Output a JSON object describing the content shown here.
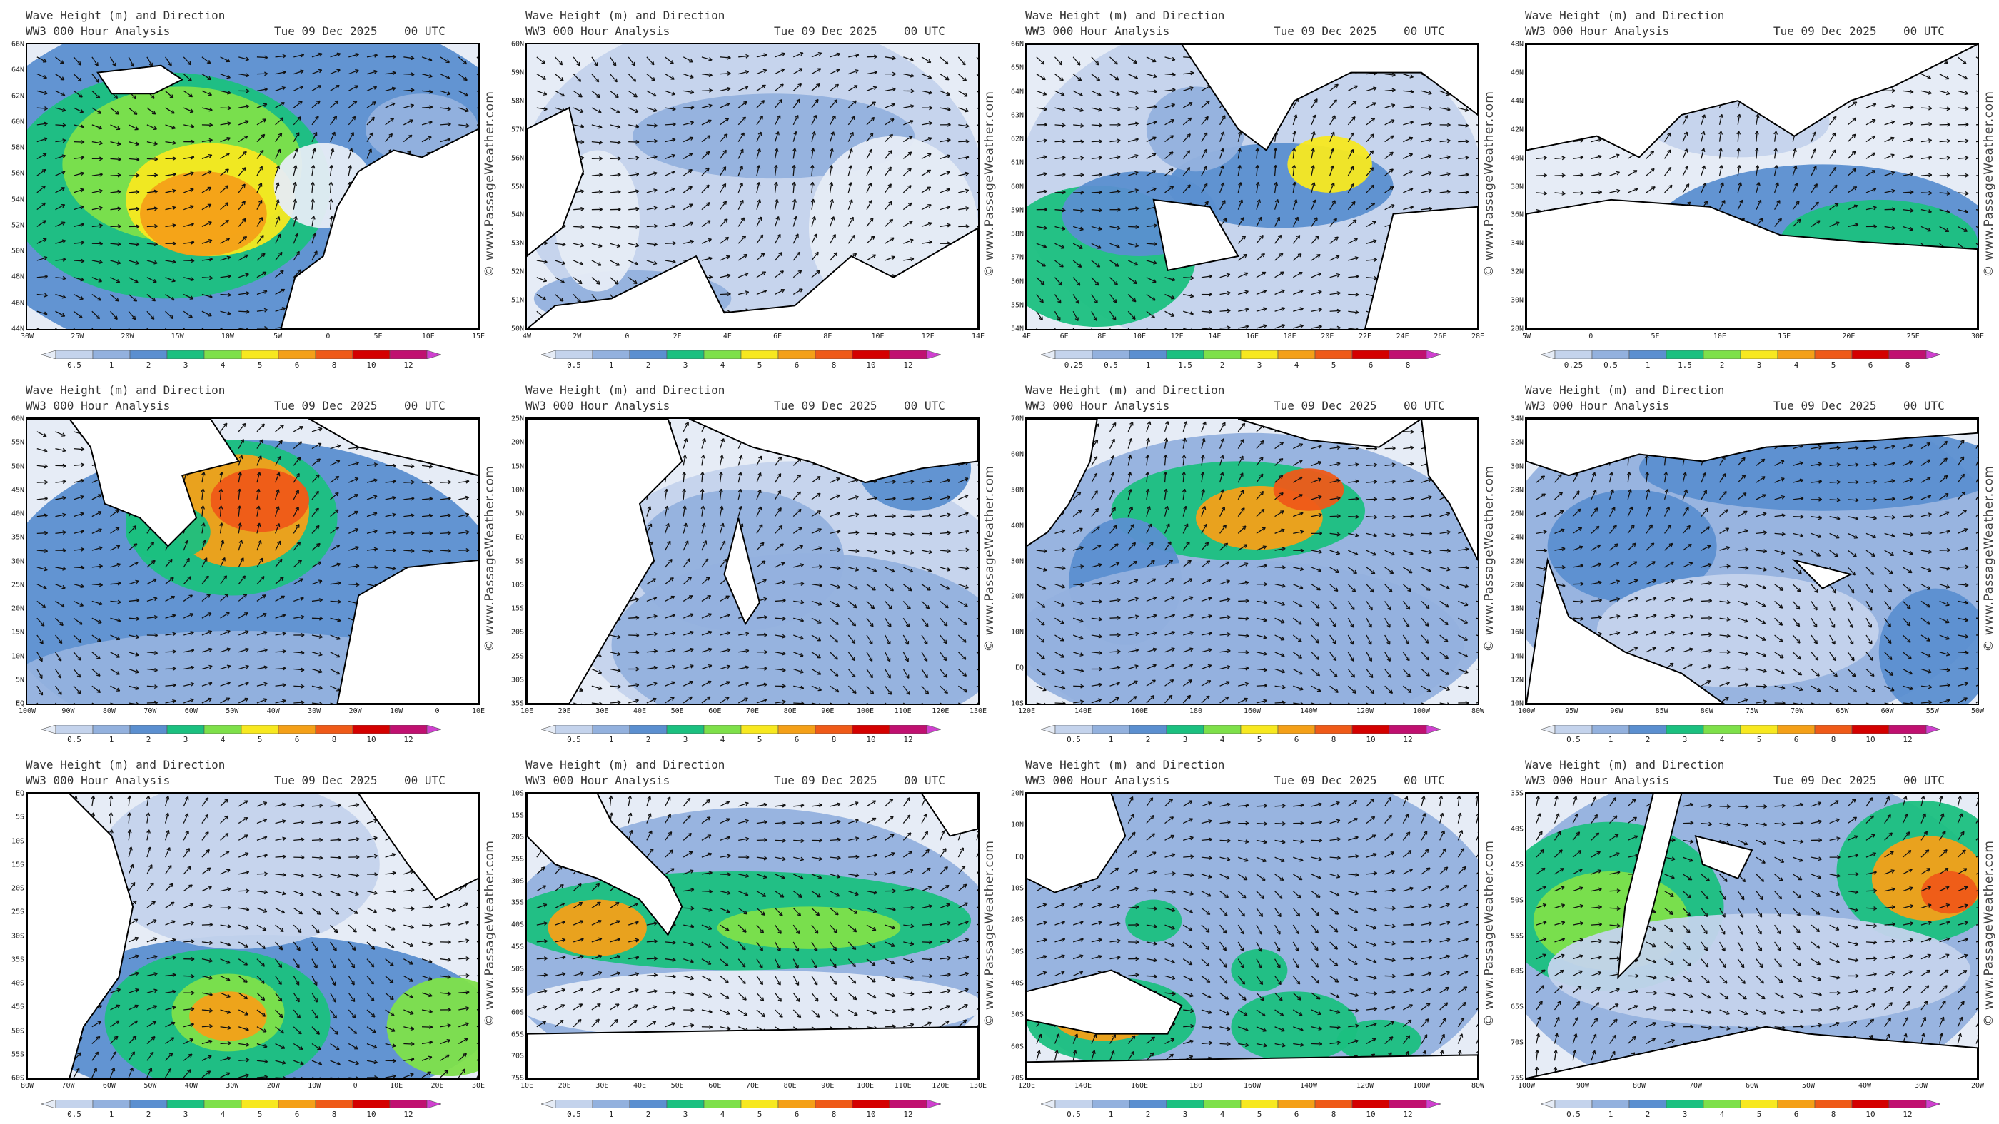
{
  "header_title": "Wave Height (m) and Direction",
  "header_model": "WW3 000 Hour Analysis",
  "header_date": "Tue 09 Dec 2025",
  "header_time": "00 UTC",
  "watermark": "© www.PassageWeather.com",
  "colors": {
    "land": "#ffffff",
    "coast": "#000000",
    "arrow": "#111111",
    "scale": [
      "#e6ecf6",
      "#c4d3ec",
      "#93b1de",
      "#5b8fd0",
      "#1bc080",
      "#7ee04a",
      "#f7e820",
      "#f4a018",
      "#ef5a18",
      "#d40000",
      "#c01070",
      "#d040d0"
    ]
  },
  "panels": [
    {
      "region": "west-europe",
      "y_ticks": [
        "66N",
        "64N",
        "62N",
        "60N",
        "58N",
        "56N",
        "54N",
        "52N",
        "50N",
        "48N",
        "46N",
        "44N"
      ],
      "x_ticks": [
        "30W",
        "25W",
        "20W",
        "15W",
        "10W",
        "5W",
        "0",
        "5E",
        "10E",
        "15E"
      ],
      "scale_labels": [
        "0.5",
        "1",
        "2",
        "3",
        "4",
        "5",
        "6",
        "8",
        "10",
        "12"
      ]
    },
    {
      "region": "north-sea",
      "y_ticks": [
        "60N",
        "59N",
        "58N",
        "57N",
        "56N",
        "55N",
        "54N",
        "53N",
        "52N",
        "51N",
        "50N"
      ],
      "x_ticks": [
        "4W",
        "2W",
        "0",
        "2E",
        "4E",
        "6E",
        "8E",
        "10E",
        "12E",
        "14E"
      ],
      "scale_labels": [
        "0.5",
        "1",
        "2",
        "3",
        "4",
        "5",
        "6",
        "8",
        "10",
        "12"
      ]
    },
    {
      "region": "baltic",
      "y_ticks": [
        "66N",
        "65N",
        "64N",
        "63N",
        "62N",
        "61N",
        "60N",
        "59N",
        "58N",
        "57N",
        "56N",
        "55N",
        "54N"
      ],
      "x_ticks": [
        "4E",
        "6E",
        "8E",
        "10E",
        "12E",
        "14E",
        "16E",
        "18E",
        "20E",
        "22E",
        "24E",
        "26E",
        "28E"
      ],
      "scale_labels": [
        "0.25",
        "0.5",
        "1",
        "1.5",
        "2",
        "3",
        "4",
        "5",
        "6",
        "8"
      ]
    },
    {
      "region": "mediterranean",
      "y_ticks": [
        "48N",
        "46N",
        "44N",
        "42N",
        "40N",
        "38N",
        "36N",
        "34N",
        "32N",
        "30N",
        "28N"
      ],
      "x_ticks": [
        "5W",
        "0",
        "5E",
        "10E",
        "15E",
        "20E",
        "25E",
        "30E"
      ],
      "scale_labels": [
        "0.25",
        "0.5",
        "1",
        "1.5",
        "2",
        "3",
        "4",
        "5",
        "6",
        "8"
      ]
    },
    {
      "region": "north-atlantic",
      "y_ticks": [
        "60N",
        "55N",
        "50N",
        "45N",
        "40N",
        "35N",
        "30N",
        "25N",
        "20N",
        "15N",
        "10N",
        "5N",
        "EQ"
      ],
      "x_ticks": [
        "100W",
        "90W",
        "80W",
        "70W",
        "60W",
        "50W",
        "40W",
        "30W",
        "20W",
        "10W",
        "0",
        "10E"
      ],
      "scale_labels": [
        "0.5",
        "1",
        "2",
        "3",
        "4",
        "5",
        "6",
        "8",
        "10",
        "12"
      ]
    },
    {
      "region": "indian-ocean",
      "y_ticks": [
        "25N",
        "20N",
        "15N",
        "10N",
        "5N",
        "EQ",
        "5S",
        "10S",
        "15S",
        "20S",
        "25S",
        "30S",
        "35S"
      ],
      "x_ticks": [
        "10E",
        "20E",
        "30E",
        "40E",
        "50E",
        "60E",
        "70E",
        "80E",
        "90E",
        "100E",
        "110E",
        "120E",
        "130E"
      ],
      "scale_labels": [
        "0.5",
        "1",
        "2",
        "3",
        "4",
        "5",
        "6",
        "8",
        "10",
        "12"
      ]
    },
    {
      "region": "north-pacific",
      "y_ticks": [
        "70N",
        "60N",
        "50N",
        "40N",
        "30N",
        "20N",
        "10N",
        "EQ",
        "10S"
      ],
      "x_ticks": [
        "120E",
        "140E",
        "160E",
        "180",
        "160W",
        "140W",
        "120W",
        "100W",
        "80W"
      ],
      "scale_labels": [
        "0.5",
        "1",
        "2",
        "3",
        "4",
        "5",
        "6",
        "8",
        "10",
        "12"
      ]
    },
    {
      "region": "caribbean",
      "y_ticks": [
        "34N",
        "32N",
        "30N",
        "28N",
        "26N",
        "24N",
        "22N",
        "20N",
        "18N",
        "16N",
        "14N",
        "12N",
        "10N"
      ],
      "x_ticks": [
        "100W",
        "95W",
        "90W",
        "85W",
        "80W",
        "75W",
        "70W",
        "65W",
        "60W",
        "55W",
        "50W"
      ],
      "scale_labels": [
        "0.5",
        "1",
        "2",
        "3",
        "4",
        "5",
        "6",
        "8",
        "10",
        "12"
      ]
    },
    {
      "region": "south-atlantic",
      "y_ticks": [
        "EQ",
        "5S",
        "10S",
        "15S",
        "20S",
        "25S",
        "30S",
        "35S",
        "40S",
        "45S",
        "50S",
        "55S",
        "60S"
      ],
      "x_ticks": [
        "80W",
        "70W",
        "60W",
        "50W",
        "40W",
        "30W",
        "20W",
        "10W",
        "0",
        "10E",
        "20E",
        "30E"
      ],
      "scale_labels": [
        "0.5",
        "1",
        "2",
        "3",
        "4",
        "5",
        "6",
        "8",
        "10",
        "12"
      ]
    },
    {
      "region": "south-indian",
      "y_ticks": [
        "10S",
        "15S",
        "20S",
        "25S",
        "30S",
        "35S",
        "40S",
        "45S",
        "50S",
        "55S",
        "60S",
        "65S",
        "70S",
        "75S"
      ],
      "x_ticks": [
        "10E",
        "20E",
        "30E",
        "40E",
        "50E",
        "60E",
        "70E",
        "80E",
        "90E",
        "100E",
        "110E",
        "120E",
        "130E"
      ],
      "scale_labels": [
        "0.5",
        "1",
        "2",
        "3",
        "4",
        "5",
        "6",
        "8",
        "10",
        "12"
      ]
    },
    {
      "region": "south-pacific",
      "y_ticks": [
        "20N",
        "10N",
        "EQ",
        "10S",
        "20S",
        "30S",
        "40S",
        "50S",
        "60S",
        "70S"
      ],
      "x_ticks": [
        "120E",
        "140E",
        "160E",
        "180",
        "160W",
        "140W",
        "120W",
        "100W",
        "80W"
      ],
      "scale_labels": [
        "0.5",
        "1",
        "2",
        "3",
        "4",
        "5",
        "6",
        "8",
        "10",
        "12"
      ]
    },
    {
      "region": "southern-cone",
      "y_ticks": [
        "35S",
        "40S",
        "45S",
        "50S",
        "55S",
        "60S",
        "65S",
        "70S",
        "75S"
      ],
      "x_ticks": [
        "100W",
        "90W",
        "80W",
        "70W",
        "60W",
        "50W",
        "40W",
        "30W",
        "20W"
      ],
      "scale_labels": [
        "0.5",
        "1",
        "2",
        "3",
        "4",
        "5",
        "6",
        "8",
        "10",
        "12"
      ]
    }
  ]
}
